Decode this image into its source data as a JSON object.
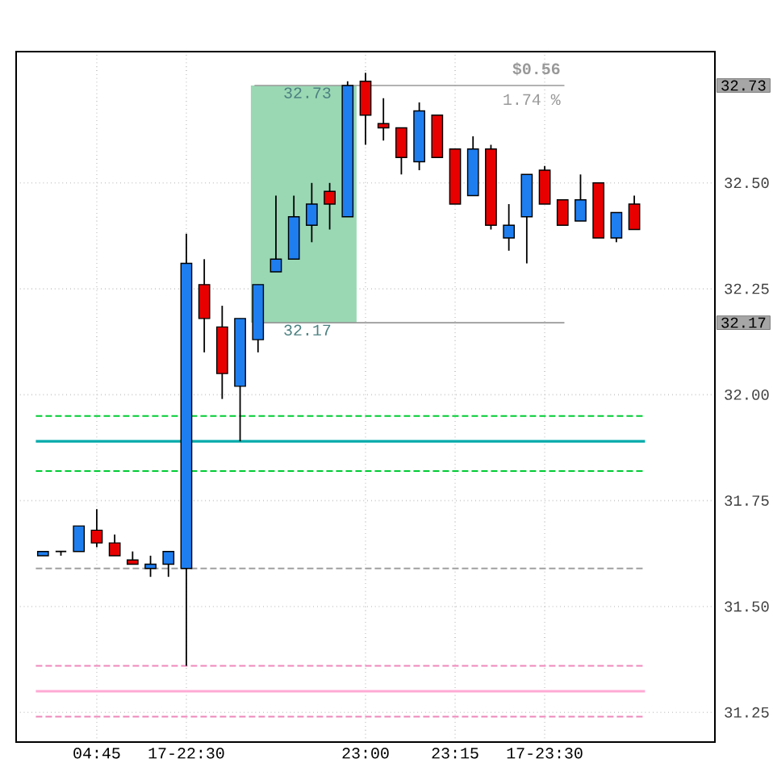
{
  "chart_data": {
    "type": "candlestick",
    "categories": [
      null,
      null,
      null,
      null,
      "04:45",
      null,
      null,
      null,
      null,
      "17-22:30",
      null,
      null,
      null,
      null,
      null,
      null,
      null,
      null,
      null,
      "23:00",
      null,
      null,
      null,
      null,
      "23:15",
      null,
      null,
      null,
      null,
      "17-23:30",
      null,
      null,
      null,
      null,
      null,
      null,
      null,
      null,
      null
    ],
    "ohlc": [
      null,
      [
        31.62,
        31.63,
        31.62,
        31.63
      ],
      [
        31.63,
        31.63,
        31.62,
        31.63
      ],
      [
        31.63,
        31.69,
        31.63,
        31.69
      ],
      [
        31.68,
        31.73,
        31.64,
        31.65
      ],
      [
        31.65,
        31.67,
        31.62,
        31.62
      ],
      [
        31.61,
        31.63,
        31.6,
        31.6
      ],
      [
        31.59,
        31.62,
        31.57,
        31.6
      ],
      [
        31.6,
        31.63,
        31.57,
        31.63
      ],
      [
        31.59,
        32.38,
        31.36,
        32.31
      ],
      [
        32.26,
        32.32,
        32.1,
        32.18
      ],
      [
        32.16,
        32.21,
        31.99,
        32.05
      ],
      [
        32.02,
        32.18,
        31.89,
        32.18
      ],
      [
        32.13,
        32.26,
        32.1,
        32.26
      ],
      [
        32.29,
        32.47,
        32.29,
        32.32
      ],
      [
        32.32,
        32.47,
        32.32,
        32.42
      ],
      [
        32.4,
        32.5,
        32.36,
        32.45
      ],
      [
        32.48,
        32.5,
        32.39,
        32.45
      ],
      [
        32.42,
        32.74,
        32.42,
        32.73
      ],
      [
        32.74,
        32.76,
        32.59,
        32.66
      ],
      [
        32.64,
        32.7,
        32.6,
        32.63
      ],
      [
        32.63,
        32.63,
        32.52,
        32.56
      ],
      [
        32.55,
        32.69,
        32.53,
        32.67
      ],
      [
        32.66,
        32.66,
        32.56,
        32.56
      ],
      [
        32.58,
        32.58,
        32.45,
        32.45
      ],
      [
        32.47,
        32.61,
        32.47,
        32.58
      ],
      [
        32.58,
        32.59,
        32.39,
        32.4
      ],
      [
        32.37,
        32.45,
        32.34,
        32.4
      ],
      [
        32.42,
        32.52,
        32.31,
        32.52
      ],
      [
        32.53,
        32.54,
        32.45,
        32.45
      ],
      [
        32.46,
        32.46,
        32.4,
        32.4
      ],
      [
        32.41,
        32.52,
        32.41,
        32.46
      ],
      [
        32.5,
        32.5,
        32.37,
        32.37
      ],
      [
        32.37,
        32.43,
        32.36,
        32.43
      ],
      [
        32.45,
        32.47,
        32.39,
        32.39
      ],
      null,
      null,
      null,
      null
    ],
    "colors": [
      null,
      "#1e7ef0",
      "#000000",
      "#1e7ef0",
      "#e80000",
      "#e80000",
      "#e80000",
      "#1e7ef0",
      "#1e7ef0",
      "#1e7ef0",
      "#e80000",
      "#e80000",
      "#1e7ef0",
      "#1e7ef0",
      "#1e7ef0",
      "#1e7ef0",
      "#1e7ef0",
      "#e80000",
      "#1e7ef0",
      "#e80000",
      "#e80000",
      "#e80000",
      "#1e7ef0",
      "#e80000",
      "#e80000",
      "#1e7ef0",
      "#e80000",
      "#1e7ef0",
      "#1e7ef0",
      "#e80000",
      "#e80000",
      "#1e7ef0",
      "#e80000",
      "#1e7ef0",
      "#e80000",
      null,
      null,
      null,
      null
    ],
    "ylim": [
      31.18,
      32.81
    ],
    "yticks": [
      {
        "value": 31.25,
        "label": "31.25"
      },
      {
        "value": 31.5,
        "label": "31.50"
      },
      {
        "value": 31.75,
        "label": "31.75"
      },
      {
        "value": 32.0,
        "label": "32.00"
      },
      {
        "value": 32.17,
        "label": "32.17"
      },
      {
        "value": 32.25,
        "label": "32.25"
      },
      {
        "value": 32.5,
        "label": "32.50"
      },
      {
        "value": 32.73,
        "label": "32.73"
      }
    ],
    "grid": true,
    "ref_lines": [
      {
        "axis": "y",
        "value": 31.95,
        "color": "#00cc33",
        "line_style": "dashed"
      },
      {
        "axis": "y",
        "value": 31.89,
        "color": "#00aaaa",
        "line_style": "solid"
      },
      {
        "axis": "y",
        "value": 31.82,
        "color": "#00cc33",
        "line_style": "dashed"
      },
      {
        "axis": "y",
        "value": 31.59,
        "color": "#a0a0a0",
        "line_style": "dashed"
      },
      {
        "axis": "y",
        "value": 31.36,
        "color": "#ee88bb",
        "line_style": "dashed"
      },
      {
        "axis": "y",
        "value": 31.3,
        "color": "#ffaad4",
        "line_style": "solid"
      },
      {
        "axis": "y",
        "value": 31.24,
        "color": "#ee88bb",
        "line_style": "dashed"
      },
      {
        "axis": "y",
        "value": 32.73,
        "label": "32.73",
        "color": "#999999",
        "line_style": "solid"
      },
      {
        "axis": "y",
        "value": 32.17,
        "label": "32.17",
        "color": "#999999",
        "line_style": "solid"
      }
    ],
    "bands": [
      {
        "axis": "y",
        "from": 32.17,
        "to": 32.73,
        "color": "#9ad8b4"
      }
    ],
    "annotations": [
      "$0.56",
      "1.74 %"
    ]
  }
}
